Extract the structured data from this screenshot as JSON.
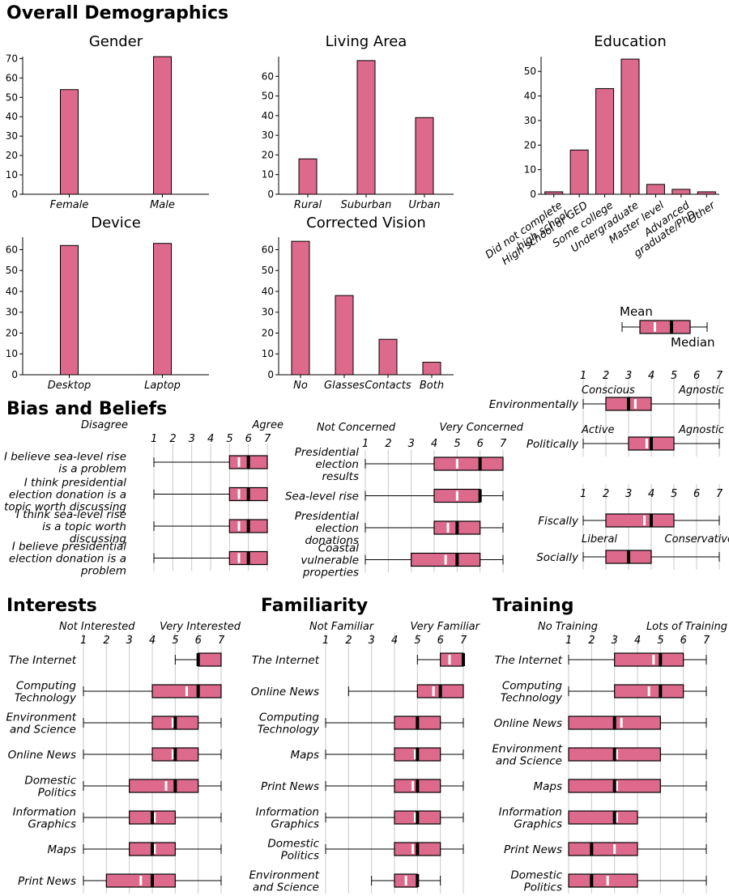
{
  "sections": {
    "overall": "Overall Demographics",
    "bias": "Bias and Beliefs",
    "interests": "Interests",
    "familiarity": "Familiarity",
    "training": "Training"
  },
  "legend": {
    "mean": "Mean",
    "median": "Median"
  },
  "colors": {
    "bar": "#dd6a8d",
    "mean": "#ffffff",
    "median": "#000000"
  },
  "chart_data": [
    {
      "type": "bar",
      "id": "gender",
      "title": "Gender",
      "categories": [
        "Female",
        "Male"
      ],
      "values": [
        54,
        71
      ],
      "yticks": [
        0,
        10,
        20,
        30,
        40,
        50,
        60,
        70
      ],
      "ylim": [
        0,
        71
      ]
    },
    {
      "type": "bar",
      "id": "living",
      "title": "Living Area",
      "categories": [
        "Rural",
        "Suburban",
        "Urban"
      ],
      "values": [
        18,
        68,
        39
      ],
      "yticks": [
        0,
        10,
        20,
        30,
        40,
        50,
        60
      ],
      "ylim": [
        0,
        70
      ]
    },
    {
      "type": "bar",
      "id": "education",
      "title": "Education",
      "categories": [
        "Did not complete high school",
        "High school or GED",
        "Some college",
        "Undergraduate",
        "Master level",
        "Advanced graduate/PhD",
        "Other"
      ],
      "values": [
        1,
        18,
        43,
        55,
        4,
        2,
        1
      ],
      "yticks": [
        0,
        10,
        20,
        30,
        40,
        50
      ],
      "ylim": [
        0,
        56
      ]
    },
    {
      "type": "bar",
      "id": "device",
      "title": "Device",
      "categories": [
        "Desktop",
        "Laptop"
      ],
      "values": [
        62,
        63
      ],
      "yticks": [
        0,
        10,
        20,
        30,
        40,
        50,
        60
      ],
      "ylim": [
        0,
        66
      ]
    },
    {
      "type": "bar",
      "id": "vision",
      "title": "Corrected Vision",
      "categories": [
        "No",
        "Glasses",
        "Contacts",
        "Both"
      ],
      "values": [
        64,
        38,
        17,
        6
      ],
      "yticks": [
        0,
        10,
        20,
        30,
        40,
        50,
        60
      ],
      "ylim": [
        0,
        66
      ]
    },
    {
      "type": "box",
      "id": "beliefs",
      "scale": [
        1,
        7
      ],
      "low_label": "Disagree",
      "high_label": "Agree",
      "rows": [
        {
          "label": "I believe sea-level rise is a problem",
          "min": 1,
          "q1": 5,
          "median": 6,
          "q3": 7,
          "max": 7,
          "mean": 5.5
        },
        {
          "label": "I think presidential election donation is a topic worth discussing",
          "min": 1,
          "q1": 5,
          "median": 6,
          "q3": 7,
          "max": 7,
          "mean": 5.5
        },
        {
          "label": "I think sea-level rise is a topic worth discussing",
          "min": 1,
          "q1": 5,
          "median": 6,
          "q3": 7,
          "max": 7,
          "mean": 5.5
        },
        {
          "label": "I believe presidential election donation is a problem",
          "min": 1,
          "q1": 5,
          "median": 6,
          "q3": 7,
          "max": 7,
          "mean": 5.5
        }
      ]
    },
    {
      "type": "box",
      "id": "concern",
      "scale": [
        1,
        7
      ],
      "low_label": "Not Concerned",
      "high_label": "Very Concerned",
      "rows": [
        {
          "label": "Presidential election results",
          "min": 1,
          "q1": 4,
          "median": 6,
          "q3": 7,
          "max": 7,
          "mean": 5
        },
        {
          "label": "Sea-level rise",
          "min": 1,
          "q1": 4,
          "median": 6,
          "q3": 6,
          "max": 7,
          "mean": 5
        },
        {
          "label": "Presidential election donations",
          "min": 1,
          "q1": 4,
          "median": 5,
          "q3": 6,
          "max": 7,
          "mean": 4.6
        },
        {
          "label": "Coastal vulnerable properties",
          "min": 1,
          "q1": 3,
          "median": 5,
          "q3": 6,
          "max": 7,
          "mean": 4.5
        }
      ]
    },
    {
      "type": "box",
      "id": "environment",
      "scale": [
        1,
        7
      ],
      "low_label": "Conscious",
      "high_label": "Agnostic",
      "rows": [
        {
          "label": "Environmentally",
          "min": 1,
          "q1": 2,
          "median": 3,
          "q3": 4,
          "max": 7,
          "mean": 3.3
        }
      ]
    },
    {
      "type": "box",
      "id": "politics",
      "scale": [
        1,
        7
      ],
      "low_label": "Active",
      "high_label": "Agnostic",
      "rows": [
        {
          "label": "Politically",
          "min": 1,
          "q1": 3,
          "median": 4,
          "q3": 5,
          "max": 7,
          "mean": 3.8
        }
      ]
    },
    {
      "type": "box",
      "id": "fiscal",
      "scale": [
        1,
        7
      ],
      "low_label": "Liberal",
      "high_label": "Conservative",
      "rows": [
        {
          "label": "Fiscally",
          "min": 1,
          "q1": 2,
          "median": 4,
          "q3": 5,
          "max": 7,
          "mean": 3.7
        },
        {
          "label": "Socially",
          "min": 1,
          "q1": 2,
          "median": 3,
          "q3": 4,
          "max": 7,
          "mean": 3
        }
      ]
    },
    {
      "type": "box",
      "id": "interests",
      "scale": [
        1,
        7
      ],
      "low_label": "Not Interested",
      "high_label": "Very Interested",
      "rows": [
        {
          "label": "The Internet",
          "min": 5,
          "q1": 6,
          "median": 6,
          "q3": 7,
          "max": 7,
          "mean": 6
        },
        {
          "label": "Computing Technology",
          "min": 1,
          "q1": 4,
          "median": 6,
          "q3": 7,
          "max": 7,
          "mean": 5.5
        },
        {
          "label": "Environment and Science",
          "min": 1,
          "q1": 4,
          "median": 5,
          "q3": 6,
          "max": 7,
          "mean": 4.9
        },
        {
          "label": "Online News",
          "min": 1,
          "q1": 4,
          "median": 5,
          "q3": 6,
          "max": 7,
          "mean": 4.9
        },
        {
          "label": "Domestic Politics",
          "min": 1,
          "q1": 3,
          "median": 5,
          "q3": 6,
          "max": 7,
          "mean": 4.6
        },
        {
          "label": "Information Graphics",
          "min": 1,
          "q1": 3,
          "median": 4,
          "q3": 5,
          "max": 7,
          "mean": 4.1
        },
        {
          "label": "Maps",
          "min": 1,
          "q1": 3,
          "median": 4,
          "q3": 5,
          "max": 7,
          "mean": 4.1
        },
        {
          "label": "Print News",
          "min": 1,
          "q1": 2,
          "median": 4,
          "q3": 5,
          "max": 7,
          "mean": 3.5
        }
      ]
    },
    {
      "type": "box",
      "id": "familiarity",
      "scale": [
        1,
        7
      ],
      "low_label": "Not Familiar",
      "high_label": "Very Familiar",
      "rows": [
        {
          "label": "The Internet",
          "min": 5,
          "q1": 6,
          "median": 7,
          "q3": 7,
          "max": 7,
          "mean": 6.4
        },
        {
          "label": "Online News",
          "min": 2,
          "q1": 5,
          "median": 6,
          "q3": 7,
          "max": 7,
          "mean": 5.7
        },
        {
          "label": "Computing Technology",
          "min": 1,
          "q1": 4,
          "median": 5,
          "q3": 6,
          "max": 7,
          "mean": 5
        },
        {
          "label": "Maps",
          "min": 1,
          "q1": 4,
          "median": 5,
          "q3": 6,
          "max": 7,
          "mean": 4.9
        },
        {
          "label": "Print News",
          "min": 1,
          "q1": 4,
          "median": 5,
          "q3": 6,
          "max": 7,
          "mean": 4.8
        },
        {
          "label": "Information Graphics",
          "min": 1,
          "q1": 4,
          "median": 5,
          "q3": 6,
          "max": 7,
          "mean": 4.9
        },
        {
          "label": "Domestic Politics",
          "min": 1,
          "q1": 4,
          "median": 5,
          "q3": 6,
          "max": 7,
          "mean": 4.8
        },
        {
          "label": "Environment and Science",
          "min": 3,
          "q1": 4,
          "median": 5,
          "q3": 5,
          "max": 6,
          "mean": 4.5
        }
      ]
    },
    {
      "type": "box",
      "id": "training",
      "scale": [
        1,
        7
      ],
      "low_label": "No Training",
      "high_label": "Lots of Training",
      "rows": [
        {
          "label": "The Internet",
          "min": 1,
          "q1": 3,
          "median": 5,
          "q3": 6,
          "max": 7,
          "mean": 4.7
        },
        {
          "label": "Computing Technology",
          "min": 1,
          "q1": 3,
          "median": 5,
          "q3": 6,
          "max": 7,
          "mean": 4.5
        },
        {
          "label": "Online News",
          "min": 1,
          "q1": 1,
          "median": 3,
          "q3": 5,
          "max": 7,
          "mean": 3.3
        },
        {
          "label": "Environment and Science",
          "min": 1,
          "q1": 1,
          "median": 3,
          "q3": 5,
          "max": 7,
          "mean": 3.1
        },
        {
          "label": "Maps",
          "min": 1,
          "q1": 1,
          "median": 3,
          "q3": 5,
          "max": 7,
          "mean": 3.1
        },
        {
          "label": "Information Graphics",
          "min": 1,
          "q1": 1,
          "median": 3,
          "q3": 4,
          "max": 7,
          "mean": 3.1
        },
        {
          "label": "Print News",
          "min": 1,
          "q1": 1,
          "median": 2,
          "q3": 4,
          "max": 7,
          "mean": 3
        },
        {
          "label": "Domestic Politics",
          "min": 1,
          "q1": 1,
          "median": 2,
          "q3": 4,
          "max": 7,
          "mean": 2.7
        }
      ]
    }
  ]
}
